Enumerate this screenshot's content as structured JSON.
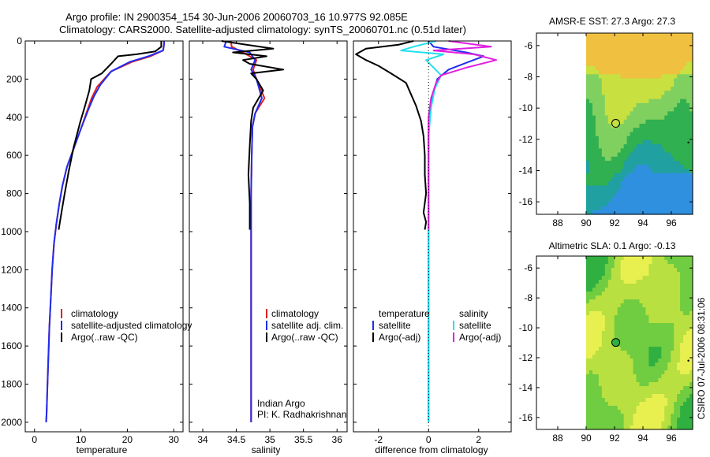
{
  "title_line1": "Argo profile: IN 2900354_154 30-Jun-2006 20060703_16 10.977S 92.085E",
  "title_line2": "Climatology: CARS2000. Satellite-adjusted climatology: synTS_20060701.nc (0.51d later)",
  "side_label": "CSIRO 07-Jul-2006 08:31:06",
  "colors": {
    "clim": "#e02020",
    "sat": "#1f2cf0",
    "argo": "#000000",
    "cyan": "#22e0f0",
    "magenta": "#e020e0"
  },
  "chart_data": [
    {
      "type": "line",
      "id": "temperature",
      "xlabel": "temperature",
      "ylabel": "",
      "xlim": [
        -2,
        32
      ],
      "ylim": [
        0,
        2050
      ],
      "y_inverted": true,
      "xticks": [
        0,
        10,
        20,
        30
      ],
      "yticks": [
        0,
        200,
        400,
        600,
        800,
        1000,
        1200,
        1400,
        1600,
        1800,
        2000
      ],
      "legend": [
        "climatology",
        "satellite-adjusted climatology",
        "Argo(..raw -QC)"
      ],
      "series": [
        {
          "name": "climatology",
          "color_key": "clim",
          "x": [
            27.9,
            27.9,
            27.7,
            25,
            21,
            16.5,
            13.5,
            12.3,
            11.3,
            10,
            8.5,
            7,
            6,
            5.3,
            4.7,
            4.2,
            3.8,
            3.5,
            3.2,
            3,
            2.8,
            2.6,
            2.5
          ],
          "y": [
            0,
            20,
            50,
            80,
            110,
            160,
            240,
            300,
            370,
            460,
            560,
            660,
            760,
            860,
            960,
            1060,
            1200,
            1350,
            1500,
            1650,
            1800,
            1950,
            2000
          ]
        },
        {
          "name": "satellite-adjusted climatology",
          "color_key": "sat",
          "x": [
            27.9,
            27.9,
            27.7,
            24.5,
            20.5,
            16.5,
            14.2,
            12.8,
            11.6,
            10,
            8.5,
            7,
            6,
            5.3,
            4.7,
            4.2,
            3.8,
            3.5,
            3.2,
            3,
            2.8,
            2.6,
            2.5
          ],
          "y": [
            0,
            20,
            50,
            80,
            110,
            160,
            230,
            290,
            360,
            460,
            560,
            660,
            760,
            860,
            960,
            1060,
            1200,
            1350,
            1500,
            1650,
            1800,
            1950,
            2000
          ]
        },
        {
          "name": "Argo(..raw -QC)",
          "color_key": "argo",
          "x": [
            27.3,
            27.3,
            26,
            22,
            18,
            16.5,
            14.5,
            12.2,
            11.8,
            11,
            9.8,
            8.4,
            7.4,
            6.5,
            5.8,
            5.2
          ],
          "y": [
            0,
            30,
            55,
            70,
            80,
            120,
            170,
            200,
            260,
            330,
            430,
            560,
            680,
            800,
            900,
            990
          ]
        }
      ]
    },
    {
      "type": "line",
      "id": "salinity",
      "xlabel": "salinity",
      "ylabel": "",
      "xlim": [
        33.8,
        36.15
      ],
      "ylim": [
        0,
        2050
      ],
      "y_inverted": true,
      "xticks": [
        34,
        34.5,
        35,
        35.5,
        36
      ],
      "legend": [
        "climatology",
        "satellite adj. clim.",
        "Argo(..raw -QC)"
      ],
      "annotation": [
        "Indian Argo",
        "PI: K. Radhakrishnan"
      ],
      "series": [
        {
          "name": "climatology",
          "color_key": "clim",
          "x": [
            34.42,
            34.43,
            34.6,
            34.8,
            34.75,
            34.8,
            34.92,
            34.78,
            34.74,
            34.73,
            34.72,
            34.72,
            34.72,
            34.72,
            34.72
          ],
          "y": [
            0,
            30,
            60,
            100,
            150,
            200,
            300,
            380,
            450,
            600,
            800,
            1000,
            1400,
            1800,
            2000
          ]
        },
        {
          "name": "satellite adj. clim.",
          "color_key": "sat",
          "x": [
            34.35,
            34.32,
            34.7,
            34.78,
            34.72,
            34.8,
            34.88,
            34.78,
            34.74,
            34.73,
            34.72,
            34.72,
            34.72,
            34.72,
            34.72
          ],
          "y": [
            0,
            30,
            60,
            100,
            150,
            200,
            300,
            380,
            450,
            600,
            800,
            1000,
            1400,
            1800,
            2000
          ]
        },
        {
          "name": "Argo(..raw -QC)",
          "color_key": "argo",
          "x": [
            34.28,
            34.65,
            35.05,
            34.45,
            34.95,
            34.6,
            34.7,
            35.2,
            34.72,
            34.8,
            34.9,
            34.75,
            34.72,
            34.7,
            34.68,
            34.7,
            34.7
          ],
          "y": [
            0,
            20,
            40,
            60,
            80,
            100,
            120,
            150,
            170,
            200,
            260,
            350,
            420,
            550,
            700,
            850,
            990
          ]
        }
      ]
    },
    {
      "type": "line",
      "id": "difference",
      "xlabel": "difference from climatology",
      "ylabel": "",
      "xlim": [
        -3,
        3.3
      ],
      "ylim": [
        0,
        2050
      ],
      "y_inverted": true,
      "xticks": [
        -2,
        0,
        2
      ],
      "legend": [
        "temperature",
        "satellite",
        "Argo(-adj)",
        "salinity",
        "satellite",
        "Argo(-adj)"
      ],
      "series": [
        {
          "name": "temperature satellite",
          "color_key": "sat",
          "x": [
            0,
            0.2,
            1.5,
            2.2,
            1.6,
            0.8,
            0.35,
            0.15,
            0.05,
            0,
            0,
            0
          ],
          "y": [
            0,
            30,
            60,
            80,
            110,
            150,
            200,
            300,
            400,
            500,
            800,
            2000
          ]
        },
        {
          "name": "temperature Argo(-adj)",
          "color_key": "argo",
          "x": [
            -0.6,
            -1.2,
            -2.5,
            -2.9,
            -2.5,
            -2,
            -1.5,
            -0.9,
            -0.7,
            -0.5,
            -0.3,
            -0.2,
            -0.15,
            -0.15,
            -0.1,
            -0.2,
            -0.1,
            -0.15
          ],
          "y": [
            0,
            20,
            40,
            70,
            100,
            130,
            170,
            220,
            280,
            340,
            420,
            500,
            600,
            700,
            800,
            900,
            950,
            990
          ]
        },
        {
          "name": "salinity satellite",
          "color_key": "cyan",
          "x": [
            0.3,
            -0.6,
            -1.1,
            0.6,
            -0.1,
            0.5,
            0.25,
            0.1,
            0,
            0,
            0
          ],
          "y": [
            0,
            30,
            50,
            70,
            100,
            180,
            250,
            350,
            500,
            1000,
            2000
          ]
        },
        {
          "name": "salinity Argo(-adj)",
          "color_key": "magenta",
          "x": [
            0.8,
            2.5,
            0.2,
            1.8,
            2.7,
            1.5,
            0.5,
            0.3,
            0.1,
            0,
            0,
            0
          ],
          "y": [
            0,
            30,
            50,
            70,
            100,
            140,
            180,
            220,
            300,
            400,
            600,
            990
          ]
        }
      ]
    },
    {
      "type": "heatmap",
      "id": "sst_map",
      "title": "AMSR-E SST: 27.3 Argo: 27.3",
      "xlim": [
        86.5,
        97.5
      ],
      "ylim": [
        -16.8,
        -5.2
      ],
      "xticks": [
        88,
        90,
        92,
        94,
        96
      ],
      "yticks": [
        -6,
        -8,
        -10,
        -12,
        -14,
        -16
      ],
      "data_xrange": [
        90,
        97.5
      ],
      "argo_position": {
        "lon": 92.085,
        "lat": -10.977
      },
      "colors": [
        "#f0c040",
        "#c8e040",
        "#80d060",
        "#30b050",
        "#20a0a0",
        "#3090e0"
      ]
    },
    {
      "type": "heatmap",
      "id": "sla_map",
      "title": "Altimetric SLA: 0.1 Argo: -0.13",
      "xlim": [
        86.5,
        97.5
      ],
      "ylim": [
        -16.8,
        -5.2
      ],
      "xticks": [
        88,
        90,
        92,
        94,
        96
      ],
      "yticks": [
        -6,
        -8,
        -10,
        -12,
        -14,
        -16
      ],
      "data_xrange": [
        90,
        97.5
      ],
      "argo_position": {
        "lon": 92.085,
        "lat": -10.977
      },
      "colors": [
        "#e8f050",
        "#b8e040",
        "#70cc40",
        "#30b040"
      ]
    }
  ]
}
